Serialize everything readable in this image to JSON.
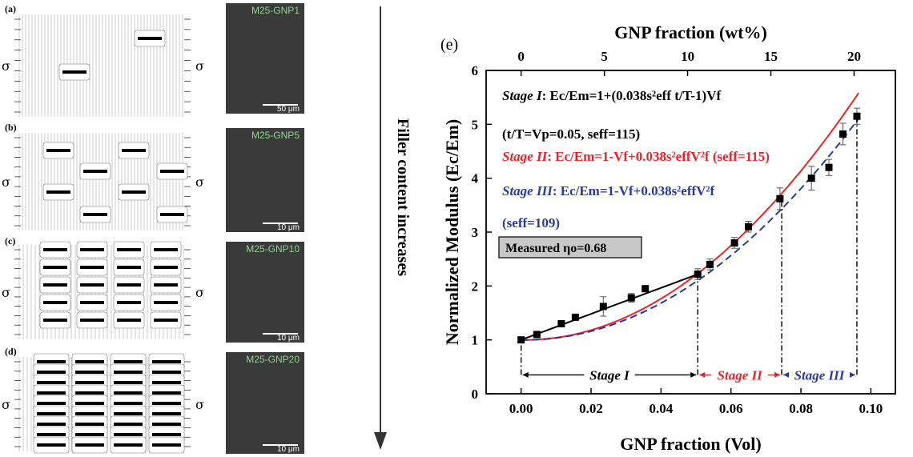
{
  "left_panels": [
    {
      "letter": "(a)",
      "sem_label": "M25-GNP1",
      "scale": "50 μm",
      "rows": 0
    },
    {
      "letter": "(b)",
      "sem_label": "M25-GNP5",
      "scale": "10 μm",
      "rows": 1
    },
    {
      "letter": "(c)",
      "sem_label": "M25-GNP10",
      "scale": "10 μm",
      "rows": 2
    },
    {
      "letter": "(d)",
      "sem_label": "M25-GNP20",
      "scale": "10 μm",
      "rows": 3
    }
  ],
  "stress_symbol": "σ",
  "arrow_label": "Filler content increases",
  "chart": {
    "panel_label": "(e)",
    "top_axis_label": "GNP fraction (wt%)",
    "bottom_axis_label": "GNP fraction (Vol)",
    "y_axis_label": "Normalized Modulus (Ec/Em)",
    "measured_box": "Measured ηo=0.68",
    "eq1_prefix": "Stage I",
    "eq1_body": ": Ec/Em=1+(0.038s²eff t/T-1)Vf",
    "eq1b": "(t/T=Vp=0.05, seff=115)",
    "eq2_prefix": "Stage II",
    "eq2_body": ": Ec/Em=1-Vf+0.038s²effV²f  (seff=115)",
    "eq3_prefix": "Stage III",
    "eq3_body": ": Ec/Em=1-Vf+0.038s²effV²f",
    "eq3b": "(seff=109)",
    "stage_labels": [
      "Stage I",
      "Stage II",
      "Stage III"
    ],
    "colors": {
      "stage1": "#000000",
      "stage2": "#e8242b",
      "stage3": "#2b3a9e"
    }
  },
  "chart_data": {
    "type": "scatter",
    "xlabel": "GNP fraction (Vol)",
    "ylabel": "Normalized Modulus (Ec/Em)",
    "x2label": "GNP fraction (wt%)",
    "xlim": [
      -0.01,
      0.107
    ],
    "ylim": [
      0,
      6
    ],
    "xticks": [
      0.0,
      0.02,
      0.04,
      0.06,
      0.08,
      0.1
    ],
    "xtick_labels": [
      "0.00",
      "0.02",
      "0.04",
      "0.06",
      "0.08",
      "0.10"
    ],
    "yticks": [
      0,
      1,
      2,
      3,
      4,
      5,
      6
    ],
    "x2ticks_wt": [
      0,
      5,
      10,
      15,
      20
    ],
    "x2ticks_vol": [
      0.0,
      0.0238,
      0.0476,
      0.0714,
      0.0952
    ],
    "series": [
      {
        "name": "Measured",
        "x": [
          0.0,
          0.0045,
          0.0115,
          0.0155,
          0.0235,
          0.0315,
          0.0355,
          0.0505,
          0.054,
          0.061,
          0.065,
          0.074,
          0.083,
          0.088,
          0.092,
          0.096
        ],
        "y": [
          1.0,
          1.1,
          1.3,
          1.42,
          1.62,
          1.78,
          1.95,
          2.22,
          2.4,
          2.8,
          3.1,
          3.62,
          4.0,
          4.2,
          4.82,
          5.15
        ],
        "err": [
          0.03,
          0.03,
          0.04,
          0.05,
          0.18,
          0.08,
          0.05,
          0.1,
          0.1,
          0.1,
          0.1,
          0.2,
          0.22,
          0.15,
          0.2,
          0.15
        ]
      }
    ],
    "stage_boundaries": [
      0.0,
      0.0505,
      0.0745,
      0.096
    ]
  }
}
